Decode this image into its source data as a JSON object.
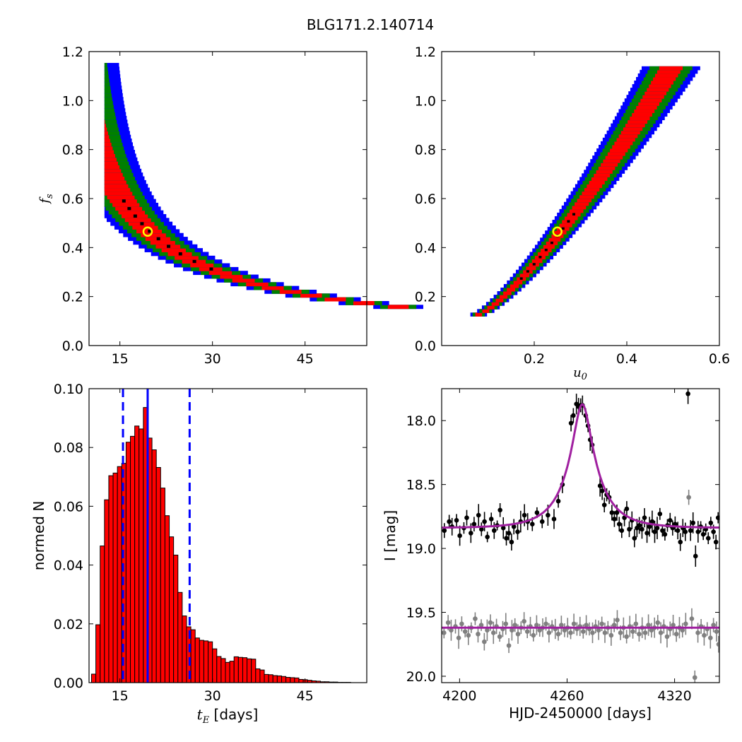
{
  "figure": {
    "title": "BLG171.2.140714"
  },
  "chart_data": [
    {
      "id": "tE_fs",
      "type": "heatmap",
      "title": "",
      "xlabel": "",
      "ylabel_main": "f",
      "ylabel_sub": "s",
      "xlim": [
        10,
        55
      ],
      "ylim": [
        0.0,
        1.2
      ],
      "xticks": [
        15,
        30,
        45
      ],
      "xtick_labels": [
        "15",
        "30",
        "45"
      ],
      "yticks": [
        0.0,
        0.2,
        0.4,
        0.6,
        0.8,
        1.0,
        1.2
      ],
      "ytick_labels": [
        "0.0",
        "0.2",
        "0.4",
        "0.6",
        "0.8",
        "1.0",
        "1.2"
      ],
      "colors": {
        "sigma3": "#0000ff",
        "sigma2": "#008000",
        "sigma1": "#ff0000",
        "best_cells": "#000000",
        "best_fit": "#ffff00"
      },
      "relation": "fs * tE approximately 9.2 (degeneracy band)",
      "band_x_range": [
        12.5,
        51.8
      ],
      "best_fit": {
        "x": 19.5,
        "y": 0.465
      }
    },
    {
      "id": "u0_fs",
      "type": "heatmap",
      "title": "",
      "xlabel_main": "u",
      "xlabel_sub": "0",
      "ylabel": "",
      "xlim": [
        0.0,
        0.6
      ],
      "ylim": [
        0.0,
        1.2
      ],
      "xticks": [
        0.2,
        0.4,
        0.6
      ],
      "xtick_labels": [
        "0.2",
        "0.4",
        "0.6"
      ],
      "yticks": [
        0.0,
        0.2,
        0.4,
        0.6,
        0.8,
        1.0,
        1.2
      ],
      "ytick_labels": [
        "0.0",
        "0.2",
        "0.4",
        "0.6",
        "0.8",
        "1.0",
        "1.2"
      ],
      "colors": {
        "sigma3": "#0000ff",
        "sigma2": "#008000",
        "sigma1": "#ff0000",
        "best_cells": "#000000",
        "best_fit": "#ffff00"
      },
      "band_x_range": [
        0.08,
        0.5
      ],
      "best_fit": {
        "x": 0.25,
        "y": 0.465
      }
    },
    {
      "id": "tE_hist",
      "type": "bar",
      "title": "",
      "xlabel_main": "t",
      "xlabel_sub": "E",
      "xlabel_suffix": " [days]",
      "ylabel": "normed N",
      "xlim": [
        10,
        55
      ],
      "ylim": [
        0.0,
        0.1
      ],
      "xticks": [
        15,
        30,
        45
      ],
      "xtick_labels": [
        "15",
        "30",
        "45"
      ],
      "yticks": [
        0.0,
        0.02,
        0.04,
        0.06,
        0.08,
        0.1
      ],
      "ytick_labels": [
        "0.00",
        "0.02",
        "0.04",
        "0.06",
        "0.08",
        "0.10"
      ],
      "bin_start": 10.4,
      "bin_width": 0.7,
      "values": [
        0.0029,
        0.0197,
        0.0465,
        0.0622,
        0.0704,
        0.0713,
        0.0735,
        0.0746,
        0.0818,
        0.0838,
        0.0873,
        0.0863,
        0.0936,
        0.0832,
        0.0792,
        0.0732,
        0.0662,
        0.0568,
        0.0496,
        0.0434,
        0.0307,
        0.0227,
        0.019,
        0.018,
        0.0152,
        0.0144,
        0.0142,
        0.0139,
        0.0115,
        0.0089,
        0.0082,
        0.0069,
        0.0073,
        0.0088,
        0.0086,
        0.0085,
        0.0081,
        0.008,
        0.0047,
        0.0043,
        0.0028,
        0.0027,
        0.0024,
        0.0023,
        0.0021,
        0.0018,
        0.0017,
        0.0016,
        0.0011,
        0.001,
        0.0008,
        0.0006,
        0.0005,
        0.0003,
        0.0003,
        0.0002,
        0.0002,
        0.0001,
        0.0001,
        0.0001
      ],
      "median": 19.5,
      "lower": 15.5,
      "upper": 26.3,
      "bar_color": "#ff0000",
      "line_color": "#0000ff"
    },
    {
      "id": "lightcurve",
      "type": "scatter",
      "title": "",
      "xlabel": "HJD-2450000 [days]",
      "ylabel": "I [mag]",
      "xlim": [
        4190,
        4345
      ],
      "ylim": [
        20.05,
        17.75
      ],
      "xticks": [
        4200,
        4260,
        4320
      ],
      "xtick_labels": [
        "4200",
        "4260",
        "4320"
      ],
      "yticks": [
        18.0,
        18.5,
        19.0,
        19.5,
        20.0
      ],
      "ytick_labels": [
        "18.0",
        "18.5",
        "19.0",
        "19.5",
        "20.0"
      ],
      "model": {
        "t0": 4268.5,
        "u0": 0.25,
        "tE": 19.5,
        "fs": 0.465,
        "base1": 18.84,
        "base2": 19.62,
        "color": "#a020a0"
      },
      "series": [
        {
          "color": "#000000",
          "points": [
            [
              4191.5,
              18.86
            ],
            [
              4194.2,
              18.79
            ],
            [
              4195.8,
              18.83
            ],
            [
              4198.3,
              18.78
            ],
            [
              4200.1,
              18.9
            ],
            [
              4202.4,
              18.84
            ],
            [
              4204.0,
              18.76
            ],
            [
              4206.3,
              18.88
            ],
            [
              4208.1,
              18.81
            ],
            [
              4210.6,
              18.74
            ],
            [
              4212.2,
              18.85
            ],
            [
              4213.9,
              18.79
            ],
            [
              4215.5,
              18.91
            ],
            [
              4217.7,
              18.77
            ],
            [
              4219.3,
              18.86
            ],
            [
              4221.0,
              18.82
            ],
            [
              4222.6,
              18.7
            ],
            [
              4224.4,
              18.84
            ],
            [
              4226.1,
              18.92
            ],
            [
              4227.5,
              18.88
            ],
            [
              4229.0,
              18.95
            ],
            [
              4230.3,
              18.83
            ],
            [
              4232.4,
              18.87
            ],
            [
              4234.1,
              18.79
            ],
            [
              4236.2,
              18.74
            ],
            [
              4238.0,
              18.79
            ],
            [
              4240.6,
              18.81
            ],
            [
              4243.2,
              18.72
            ],
            [
              4246.1,
              18.79
            ],
            [
              4249.3,
              18.74
            ],
            [
              4252.7,
              18.77
            ],
            [
              4255.1,
              18.63
            ],
            [
              4257.4,
              18.5
            ],
            [
              4262.2,
              18.02
            ],
            [
              4263.5,
              17.96
            ],
            [
              4265.2,
              17.87
            ],
            [
              4266.4,
              17.89
            ],
            [
              4267.6,
              17.88
            ],
            [
              4268.6,
              17.88
            ],
            [
              4270.4,
              17.96
            ],
            [
              4271.7,
              18.04
            ],
            [
              4272.9,
              18.15
            ],
            [
              4274.0,
              18.19
            ],
            [
              4278.4,
              18.51
            ],
            [
              4279.6,
              18.55
            ],
            [
              4280.8,
              18.66
            ],
            [
              4282.1,
              18.58
            ],
            [
              4283.5,
              18.6
            ],
            [
              4285.0,
              18.72
            ],
            [
              4286.4,
              18.77
            ],
            [
              4287.8,
              18.72
            ],
            [
              4289.1,
              18.81
            ],
            [
              4290.5,
              18.86
            ],
            [
              4292.0,
              18.76
            ],
            [
              4293.3,
              18.69
            ],
            [
              4294.7,
              18.85
            ],
            [
              4296.2,
              18.78
            ],
            [
              4297.6,
              18.92
            ],
            [
              4299.0,
              18.84
            ],
            [
              4300.3,
              18.82
            ],
            [
              4301.8,
              18.85
            ],
            [
              4303.2,
              18.76
            ],
            [
              4304.6,
              18.88
            ],
            [
              4306.0,
              18.83
            ],
            [
              4307.5,
              18.79
            ],
            [
              4308.9,
              18.87
            ],
            [
              4310.3,
              18.84
            ],
            [
              4311.8,
              18.73
            ],
            [
              4313.2,
              18.86
            ],
            [
              4314.6,
              18.89
            ],
            [
              4316.0,
              18.82
            ],
            [
              4317.5,
              18.78
            ],
            [
              4318.9,
              18.84
            ],
            [
              4320.3,
              18.81
            ],
            [
              4321.8,
              18.86
            ],
            [
              4323.2,
              18.95
            ],
            [
              4324.6,
              18.84
            ],
            [
              4326.0,
              18.87
            ],
            [
              4327.5,
              17.79
            ],
            [
              4328.9,
              18.86
            ],
            [
              4330.3,
              18.8
            ],
            [
              4331.7,
              19.06
            ],
            [
              4333.1,
              18.87
            ],
            [
              4334.6,
              18.83
            ],
            [
              4336.0,
              18.89
            ],
            [
              4337.4,
              18.85
            ],
            [
              4338.8,
              18.92
            ],
            [
              4340.2,
              18.8
            ],
            [
              4341.7,
              18.87
            ],
            [
              4343.1,
              18.95
            ],
            [
              4344.3,
              18.76
            ]
          ]
        },
        {
          "color": "#808080",
          "points": [
            [
              4191.3,
              19.66
            ],
            [
              4193.6,
              19.58
            ],
            [
              4195.3,
              19.64
            ],
            [
              4197.7,
              19.61
            ],
            [
              4199.5,
              19.7
            ],
            [
              4201.2,
              19.59
            ],
            [
              4203.1,
              19.65
            ],
            [
              4204.9,
              19.68
            ],
            [
              4206.5,
              19.62
            ],
            [
              4208.7,
              19.55
            ],
            [
              4210.3,
              19.67
            ],
            [
              4212.1,
              19.6
            ],
            [
              4213.8,
              19.73
            ],
            [
              4215.4,
              19.64
            ],
            [
              4217.2,
              19.58
            ],
            [
              4218.9,
              19.66
            ],
            [
              4220.6,
              19.61
            ],
            [
              4222.4,
              19.69
            ],
            [
              4224.1,
              19.63
            ],
            [
              4225.8,
              19.59
            ],
            [
              4227.5,
              19.76
            ],
            [
              4229.2,
              19.64
            ],
            [
              4230.9,
              19.6
            ],
            [
              4232.6,
              19.67
            ],
            [
              4234.3,
              19.62
            ],
            [
              4236.0,
              19.57
            ],
            [
              4237.8,
              19.65
            ],
            [
              4239.5,
              19.61
            ],
            [
              4241.2,
              19.68
            ],
            [
              4243.0,
              19.6
            ],
            [
              4244.7,
              19.64
            ],
            [
              4246.4,
              19.62
            ],
            [
              4248.2,
              19.59
            ],
            [
              4249.9,
              19.66
            ],
            [
              4251.6,
              19.61
            ],
            [
              4253.4,
              19.63
            ],
            [
              4255.1,
              19.67
            ],
            [
              4256.8,
              19.6
            ],
            [
              4258.6,
              19.64
            ],
            [
              4260.3,
              19.62
            ],
            [
              4262.0,
              19.66
            ],
            [
              4263.8,
              19.59
            ],
            [
              4265.5,
              19.63
            ],
            [
              4267.2,
              19.61
            ],
            [
              4269.0,
              19.65
            ],
            [
              4270.7,
              19.6
            ],
            [
              4272.4,
              19.63
            ],
            [
              4274.2,
              19.66
            ],
            [
              4275.9,
              19.61
            ],
            [
              4277.6,
              19.64
            ],
            [
              4279.4,
              19.59
            ],
            [
              4281.1,
              19.66
            ],
            [
              4282.8,
              19.62
            ],
            [
              4284.6,
              19.68
            ],
            [
              4286.3,
              19.6
            ],
            [
              4288.0,
              19.56
            ],
            [
              4289.8,
              19.66
            ],
            [
              4291.5,
              19.62
            ],
            [
              4293.2,
              19.69
            ],
            [
              4295.0,
              19.61
            ],
            [
              4296.7,
              19.65
            ],
            [
              4298.4,
              19.59
            ],
            [
              4300.2,
              19.67
            ],
            [
              4301.9,
              19.62
            ],
            [
              4303.6,
              19.66
            ],
            [
              4305.4,
              19.6
            ],
            [
              4307.1,
              19.64
            ],
            [
              4308.8,
              19.62
            ],
            [
              4310.6,
              19.58
            ],
            [
              4312.3,
              19.66
            ],
            [
              4314.0,
              19.61
            ],
            [
              4315.8,
              19.69
            ],
            [
              4317.5,
              19.63
            ],
            [
              4319.2,
              19.6
            ],
            [
              4321.0,
              19.67
            ],
            [
              4322.7,
              19.62
            ],
            [
              4324.4,
              19.64
            ],
            [
              4326.2,
              19.59
            ],
            [
              4327.9,
              18.6
            ],
            [
              4329.6,
              19.55
            ],
            [
              4331.3,
              20.01
            ],
            [
              4333.0,
              19.66
            ],
            [
              4334.8,
              19.61
            ],
            [
              4336.5,
              19.68
            ],
            [
              4338.2,
              19.63
            ],
            [
              4340.0,
              19.7
            ],
            [
              4341.7,
              19.6
            ],
            [
              4343.4,
              19.65
            ],
            [
              4344.6,
              19.75
            ]
          ]
        }
      ]
    }
  ]
}
